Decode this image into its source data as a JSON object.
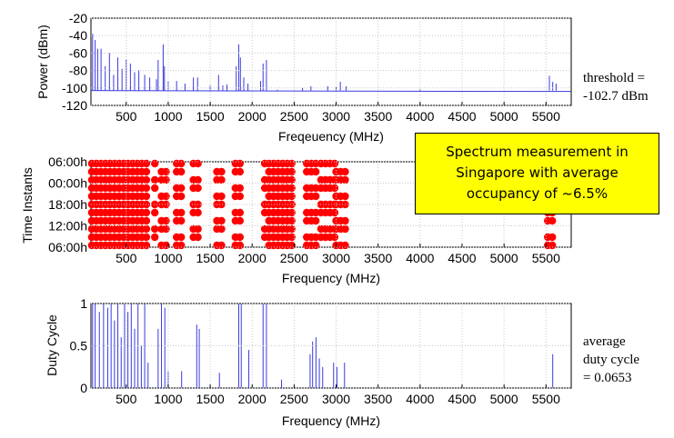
{
  "colors": {
    "trace": "#3a3ae0",
    "marker": "#ff0000",
    "callout_bg": "#ffff00",
    "grid": "#c8c8c8"
  },
  "callout": {
    "line1": "Spectrum measurement in",
    "line2": "Singapore with average",
    "line3": "occupancy of ~6.5%"
  },
  "notes": {
    "threshold_line1": "threshold =",
    "threshold_line2": "-102.7 dBm",
    "duty_line1": "average",
    "duty_line2": "duty cycle",
    "duty_line3": "= 0.0653"
  },
  "chart_data": [
    {
      "type": "line",
      "title": "",
      "xlabel": "Freqeuency (MHz)",
      "ylabel": "Power (dBm)",
      "xlim": [
        80,
        5800
      ],
      "ylim": [
        -120,
        -20
      ],
      "xticks": [
        500,
        1000,
        1500,
        2000,
        2500,
        3000,
        3500,
        4000,
        4500,
        5000,
        5500
      ],
      "xtick_labels": [
        "500",
        "1000",
        "1500",
        "2000",
        "2500",
        "3000",
        "3500",
        "4000",
        "4500",
        "5000",
        "5500"
      ],
      "yticks": [
        -20,
        -40,
        -60,
        -80,
        -100,
        -120
      ],
      "ytick_labels": [
        "-20",
        "-40",
        "-60",
        "-80",
        "-100",
        "-120"
      ],
      "grid": true,
      "noise_floor_dbm": -103,
      "peaks": [
        {
          "x": 100,
          "y": -38
        },
        {
          "x": 130,
          "y": -45
        },
        {
          "x": 160,
          "y": -55
        },
        {
          "x": 200,
          "y": -55
        },
        {
          "x": 250,
          "y": -75
        },
        {
          "x": 300,
          "y": -60
        },
        {
          "x": 350,
          "y": -85
        },
        {
          "x": 400,
          "y": -65
        },
        {
          "x": 450,
          "y": -78
        },
        {
          "x": 500,
          "y": -67
        },
        {
          "x": 550,
          "y": -72
        },
        {
          "x": 600,
          "y": -82
        },
        {
          "x": 650,
          "y": -80
        },
        {
          "x": 720,
          "y": -85
        },
        {
          "x": 780,
          "y": -88
        },
        {
          "x": 860,
          "y": -90
        },
        {
          "x": 880,
          "y": -68
        },
        {
          "x": 940,
          "y": -50
        },
        {
          "x": 955,
          "y": -75
        },
        {
          "x": 1000,
          "y": -92
        },
        {
          "x": 1100,
          "y": -92
        },
        {
          "x": 1200,
          "y": -95
        },
        {
          "x": 1300,
          "y": -88
        },
        {
          "x": 1350,
          "y": -88
        },
        {
          "x": 1500,
          "y": -97
        },
        {
          "x": 1600,
          "y": -85
        },
        {
          "x": 1650,
          "y": -97
        },
        {
          "x": 1700,
          "y": -96
        },
        {
          "x": 1810,
          "y": -75
        },
        {
          "x": 1840,
          "y": -50
        },
        {
          "x": 1860,
          "y": -65
        },
        {
          "x": 1900,
          "y": -88
        },
        {
          "x": 1950,
          "y": -95
        },
        {
          "x": 2100,
          "y": -92
        },
        {
          "x": 2130,
          "y": -72
        },
        {
          "x": 2170,
          "y": -68
        },
        {
          "x": 2300,
          "y": -102
        },
        {
          "x": 2600,
          "y": -100
        },
        {
          "x": 2700,
          "y": -98
        },
        {
          "x": 2900,
          "y": -98
        },
        {
          "x": 3000,
          "y": -98
        },
        {
          "x": 3050,
          "y": -93
        },
        {
          "x": 3120,
          "y": -98
        },
        {
          "x": 4000,
          "y": -101
        },
        {
          "x": 5540,
          "y": -86
        },
        {
          "x": 5580,
          "y": -93
        },
        {
          "x": 5620,
          "y": -95
        }
      ]
    },
    {
      "type": "scatter",
      "title": "",
      "xlabel": "Frequency (MHz)",
      "ylabel": "Time Instants",
      "xlim": [
        80,
        5800
      ],
      "ytick_labels": [
        "06:00h",
        "00:00h",
        "18:00h",
        "12:00h",
        "06:00h"
      ],
      "grid": true,
      "occupied_bands_mhz": [
        [
          90,
          760
        ],
        [
          840,
          890
        ],
        [
          920,
          1000
        ],
        [
          1100,
          1180
        ],
        [
          1300,
          1380
        ],
        [
          1580,
          1660
        ],
        [
          1800,
          1900
        ],
        [
          2150,
          2200
        ],
        [
          2200,
          2480
        ],
        [
          2650,
          2780
        ],
        [
          2820,
          3000
        ],
        [
          3000,
          3130
        ],
        [
          5520,
          5600
        ]
      ]
    },
    {
      "type": "line",
      "title": "",
      "xlabel": "Frequency (MHz)",
      "ylabel": "Duty Cycle",
      "xlim": [
        80,
        5800
      ],
      "ylim": [
        0,
        1
      ],
      "yticks": [
        0,
        0.5,
        1
      ],
      "ytick_labels": [
        "0",
        "0.5",
        "1"
      ],
      "xticks": [
        500,
        1000,
        1500,
        2000,
        2500,
        3000,
        3500,
        4000,
        4500,
        5000,
        5500
      ],
      "xtick_labels": [
        "500",
        "1000",
        "1500",
        "2000",
        "2500",
        "3000",
        "3500",
        "4000",
        "4500",
        "5000",
        "5500"
      ],
      "grid": true,
      "bars": [
        {
          "x": 100,
          "y": 1
        },
        {
          "x": 130,
          "y": 1
        },
        {
          "x": 180,
          "y": 0.9
        },
        {
          "x": 230,
          "y": 1
        },
        {
          "x": 280,
          "y": 0.95
        },
        {
          "x": 320,
          "y": 1
        },
        {
          "x": 360,
          "y": 0.8
        },
        {
          "x": 400,
          "y": 1
        },
        {
          "x": 440,
          "y": 0.6
        },
        {
          "x": 480,
          "y": 1
        },
        {
          "x": 520,
          "y": 0.9
        },
        {
          "x": 560,
          "y": 1
        },
        {
          "x": 600,
          "y": 0.7
        },
        {
          "x": 640,
          "y": 1
        },
        {
          "x": 680,
          "y": 0.5
        },
        {
          "x": 720,
          "y": 1
        },
        {
          "x": 760,
          "y": 0.3
        },
        {
          "x": 880,
          "y": 0.7
        },
        {
          "x": 920,
          "y": 1
        },
        {
          "x": 960,
          "y": 0.95
        },
        {
          "x": 1000,
          "y": 0.2
        },
        {
          "x": 1160,
          "y": 0.2
        },
        {
          "x": 1340,
          "y": 0.75
        },
        {
          "x": 1370,
          "y": 0.7
        },
        {
          "x": 1610,
          "y": 0.18
        },
        {
          "x": 1840,
          "y": 1
        },
        {
          "x": 1870,
          "y": 1
        },
        {
          "x": 1960,
          "y": 0.45
        },
        {
          "x": 2130,
          "y": 1
        },
        {
          "x": 2170,
          "y": 1
        },
        {
          "x": 2350,
          "y": 0.1
        },
        {
          "x": 2690,
          "y": 0.4
        },
        {
          "x": 2720,
          "y": 0.55
        },
        {
          "x": 2760,
          "y": 0.6
        },
        {
          "x": 2800,
          "y": 0.35
        },
        {
          "x": 2840,
          "y": 0.25
        },
        {
          "x": 2970,
          "y": 0.3
        },
        {
          "x": 3010,
          "y": 0.25
        },
        {
          "x": 3100,
          "y": 0.3
        },
        {
          "x": 5580,
          "y": 0.4
        }
      ]
    }
  ]
}
